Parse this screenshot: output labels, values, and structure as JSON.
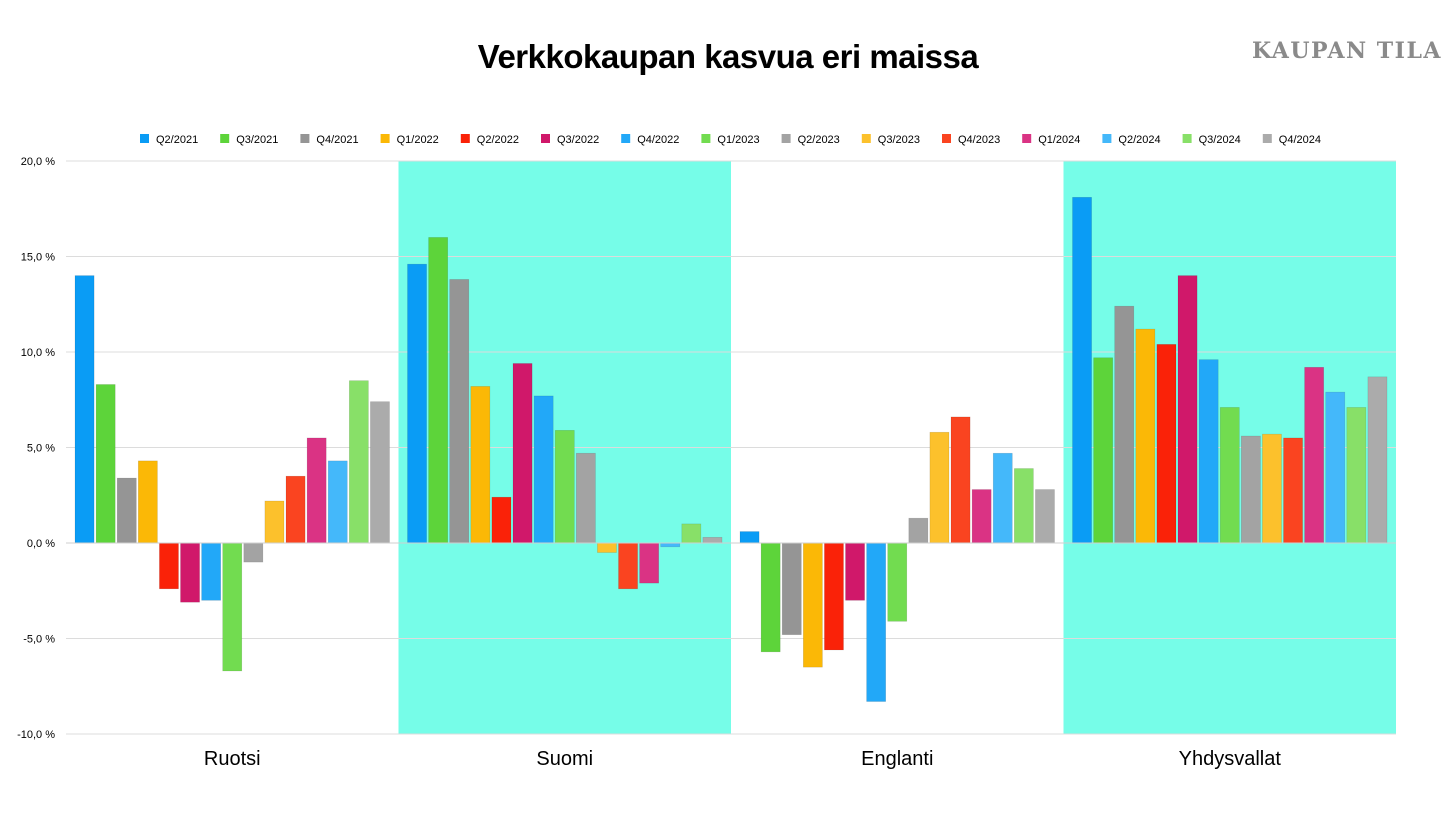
{
  "header": {
    "title": "Verkkokaupan kasvua eri maissa",
    "brand": "KAUPAN TILA"
  },
  "chart_data": {
    "type": "bar",
    "title": "Verkkokaupan kasvua eri maissa",
    "categories": [
      "Ruotsi",
      "Suomi",
      "Englanti",
      "Yhdysvallat"
    ],
    "highlighted_categories": [
      "Suomi",
      "Yhdysvallat"
    ],
    "highlight_color": "#76fde8",
    "ylim": [
      -10,
      20
    ],
    "yticks": [
      -10,
      -5,
      0,
      5,
      10,
      15,
      20
    ],
    "ytick_labels": [
      "-10,0 %",
      "-5,0 %",
      "0,0 %",
      "5,0 %",
      "10,0 %",
      "15,0 %",
      "20,0 %"
    ],
    "grid": true,
    "legend_position": "top",
    "series": [
      {
        "name": "Q2/2021",
        "color": "#0a9cf5",
        "values": [
          14.0,
          14.6,
          0.6,
          18.1
        ]
      },
      {
        "name": "Q3/2021",
        "color": "#5dd43a",
        "values": [
          8.3,
          16.0,
          -5.7,
          9.7
        ]
      },
      {
        "name": "Q4/2021",
        "color": "#959595",
        "values": [
          3.4,
          13.8,
          -4.8,
          12.4
        ]
      },
      {
        "name": "Q1/2022",
        "color": "#fbb806",
        "values": [
          4.3,
          8.2,
          -6.5,
          11.2
        ]
      },
      {
        "name": "Q2/2022",
        "color": "#fa2208",
        "values": [
          -2.4,
          2.4,
          -5.6,
          10.4
        ]
      },
      {
        "name": "Q3/2022",
        "color": "#d0186a",
        "values": [
          -3.1,
          9.4,
          -3.0,
          14.0
        ]
      },
      {
        "name": "Q4/2022",
        "color": "#22a8f8",
        "values": [
          -3.0,
          7.7,
          -8.3,
          9.6
        ]
      },
      {
        "name": "Q1/2023",
        "color": "#72dc50",
        "values": [
          -6.7,
          5.9,
          -4.1,
          7.1
        ]
      },
      {
        "name": "Q2/2023",
        "color": "#a3a3a3",
        "values": [
          -1.0,
          4.7,
          1.3,
          5.6
        ]
      },
      {
        "name": "Q3/2023",
        "color": "#fcc12c",
        "values": [
          2.2,
          -0.5,
          5.8,
          5.7
        ]
      },
      {
        "name": "Q4/2023",
        "color": "#fa4420",
        "values": [
          3.5,
          -2.4,
          6.6,
          5.5
        ]
      },
      {
        "name": "Q1/2024",
        "color": "#da3384",
        "values": [
          5.5,
          -2.1,
          2.8,
          9.2
        ]
      },
      {
        "name": "Q2/2024",
        "color": "#44b8fa",
        "values": [
          4.3,
          -0.2,
          4.7,
          7.9
        ]
      },
      {
        "name": "Q3/2024",
        "color": "#88e068",
        "values": [
          8.5,
          1.0,
          3.9,
          7.1
        ]
      },
      {
        "name": "Q4/2024",
        "color": "#ababab",
        "values": [
          7.4,
          0.3,
          2.8,
          8.7
        ]
      }
    ]
  }
}
